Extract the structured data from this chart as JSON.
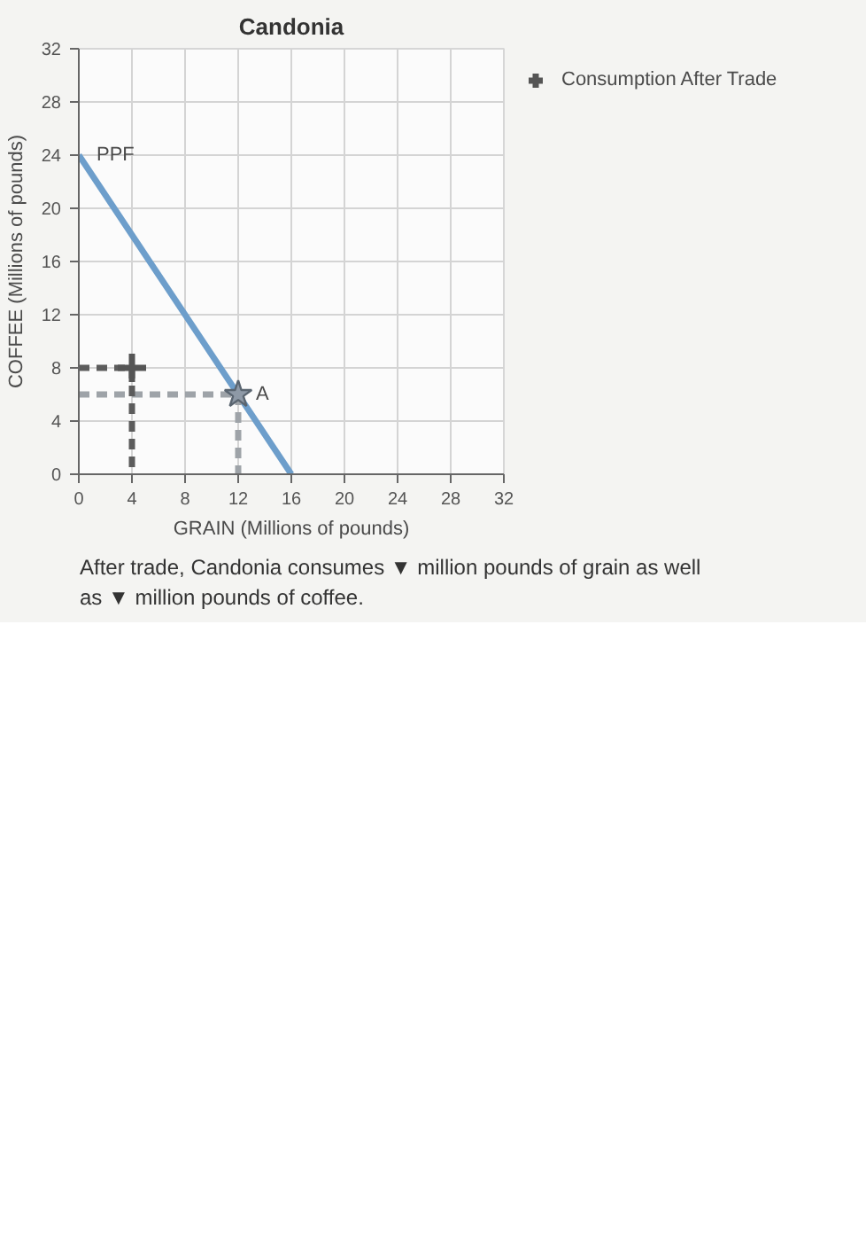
{
  "chart_data": {
    "type": "line",
    "title": "Candonia",
    "xlabel": "GRAIN (Millions of pounds)",
    "ylabel": "COFFEE (Millions of pounds)",
    "xlim": [
      0,
      32
    ],
    "ylim": [
      0,
      32
    ],
    "xticks": [
      0,
      4,
      8,
      12,
      16,
      20,
      24,
      28,
      32
    ],
    "yticks": [
      0,
      4,
      8,
      12,
      16,
      20,
      24,
      28,
      32
    ],
    "grid": true,
    "legend": "right",
    "series": [
      {
        "x": [
          0,
          16
        ],
        "values": [
          24,
          0
        ],
        "color": "#6d9ecb",
        "line_style": "solid"
      },
      {
        "x": [
          0,
          12,
          12
        ],
        "values": [
          6,
          6,
          0
        ],
        "color": "#9ea3a8",
        "line_style": "dashed"
      },
      {
        "type": "scatter",
        "x": [
          12
        ],
        "values": [
          6
        ],
        "color": "#8e99a6",
        "marker": "star"
      },
      {
        "x": [
          0,
          4,
          4
        ],
        "values": [
          8,
          8,
          0
        ],
        "color": "#5c5c5c",
        "line_style": "dashed"
      },
      {
        "type": "scatter",
        "name": "Consumption After Trade",
        "x": [
          4
        ],
        "values": [
          8
        ],
        "color": "#555555",
        "marker": "cross"
      }
    ],
    "annotations": [
      {
        "text": "PPF",
        "x": 0,
        "y": 24
      },
      {
        "text": "A",
        "x": 12,
        "y": 6
      },
      "After trade, Candonia consumes ▼ million pounds of grain as well as ▼ million pounds of coffee."
    ]
  }
}
